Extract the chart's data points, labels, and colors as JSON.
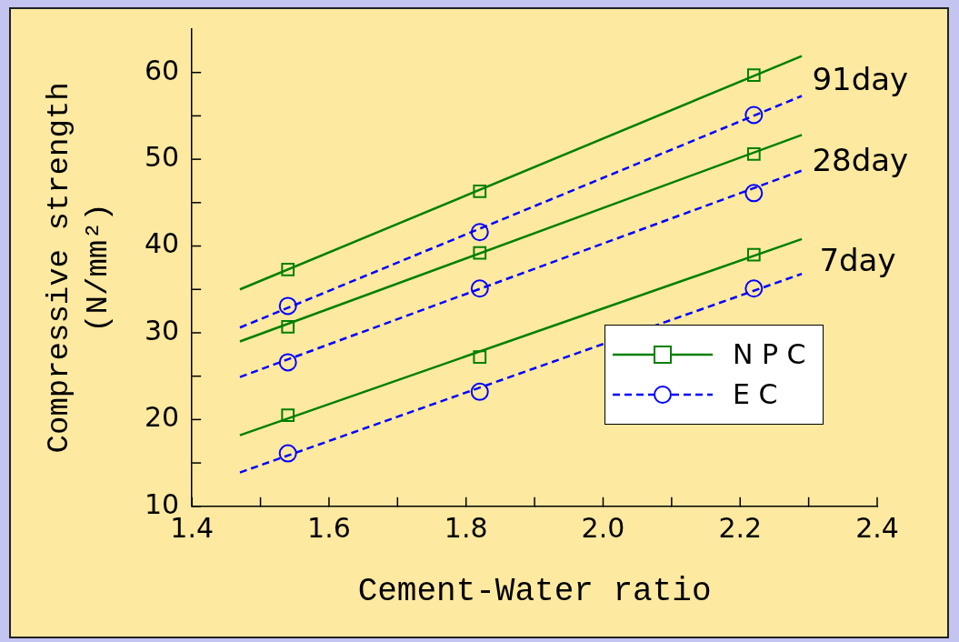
{
  "chart_data": {
    "type": "scatter",
    "xlabel": "Cement-Water ratio",
    "ylabel": "Compressive strength\n(N/mm²)",
    "xlim": [
      1.4,
      2.4
    ],
    "xticks": [
      1.4,
      {
        "value": 1.5,
        "label": null
      },
      1.6,
      {
        "value": 1.7,
        "label": null
      },
      1.8,
      {
        "value": 1.9,
        "label": null
      },
      "2.0",
      {
        "value": 2.1,
        "label": null
      },
      2.2,
      {
        "value": 2.3,
        "label": null
      },
      2.4
    ],
    "ylim": [
      10,
      65
    ],
    "yticks": [
      10,
      {
        "value": 15,
        "label": null
      },
      20,
      {
        "value": 25,
        "label": null
      },
      30,
      {
        "value": 35,
        "label": null
      },
      40,
      {
        "value": 45,
        "label": null
      },
      50,
      {
        "value": 55,
        "label": null
      },
      60
    ],
    "grid": false,
    "legend": "bottom right",
    "series": [
      {
        "name": "N P C",
        "type": "scatter",
        "color": "#008000",
        "marker": "square",
        "line_style": "solid",
        "x": [
          1.54,
          1.82,
          2.22,
          1.54,
          1.82,
          2.22,
          1.54,
          1.82,
          2.22
        ],
        "values": [
          37.3,
          46.3,
          59.7,
          30.7,
          39.2,
          50.6,
          20.5,
          27.2,
          39.0
        ]
      },
      {
        "name": "E C",
        "type": "scatter",
        "color": "#0000ff",
        "marker": "circle",
        "line_style": "dashed",
        "x": [
          1.54,
          1.82,
          2.22,
          1.54,
          1.82,
          2.22,
          1.54,
          1.82,
          2.22
        ],
        "values": [
          33.1,
          41.6,
          55.1,
          26.6,
          35.1,
          46.1,
          16.1,
          23.2,
          35.1
        ]
      },
      {
        "type": "line",
        "color": "#008000",
        "line_style": "solid",
        "marker": "none",
        "x": [
          1.47,
          2.29
        ],
        "values": [
          35.0,
          61.9
        ]
      },
      {
        "type": "line",
        "color": "#0000ff",
        "line_style": "dashed",
        "marker": "none",
        "x": [
          1.47,
          2.29
        ],
        "values": [
          30.6,
          57.3
        ]
      },
      {
        "type": "line",
        "color": "#008000",
        "line_style": "solid",
        "marker": "none",
        "x": [
          1.47,
          2.29
        ],
        "values": [
          29.0,
          52.8
        ]
      },
      {
        "type": "line",
        "color": "#0000ff",
        "line_style": "dashed",
        "marker": "none",
        "x": [
          1.47,
          2.29
        ],
        "values": [
          24.9,
          48.7
        ]
      },
      {
        "type": "line",
        "color": "#008000",
        "line_style": "solid",
        "marker": "none",
        "x": [
          1.47,
          2.29
        ],
        "values": [
          18.2,
          40.8
        ]
      },
      {
        "type": "line",
        "color": "#0000ff",
        "line_style": "dashed",
        "marker": "none",
        "x": [
          1.47,
          2.29
        ],
        "values": [
          13.9,
          36.8
        ]
      }
    ],
    "annotations": [
      "91day",
      "28day",
      "7day"
    ]
  }
}
